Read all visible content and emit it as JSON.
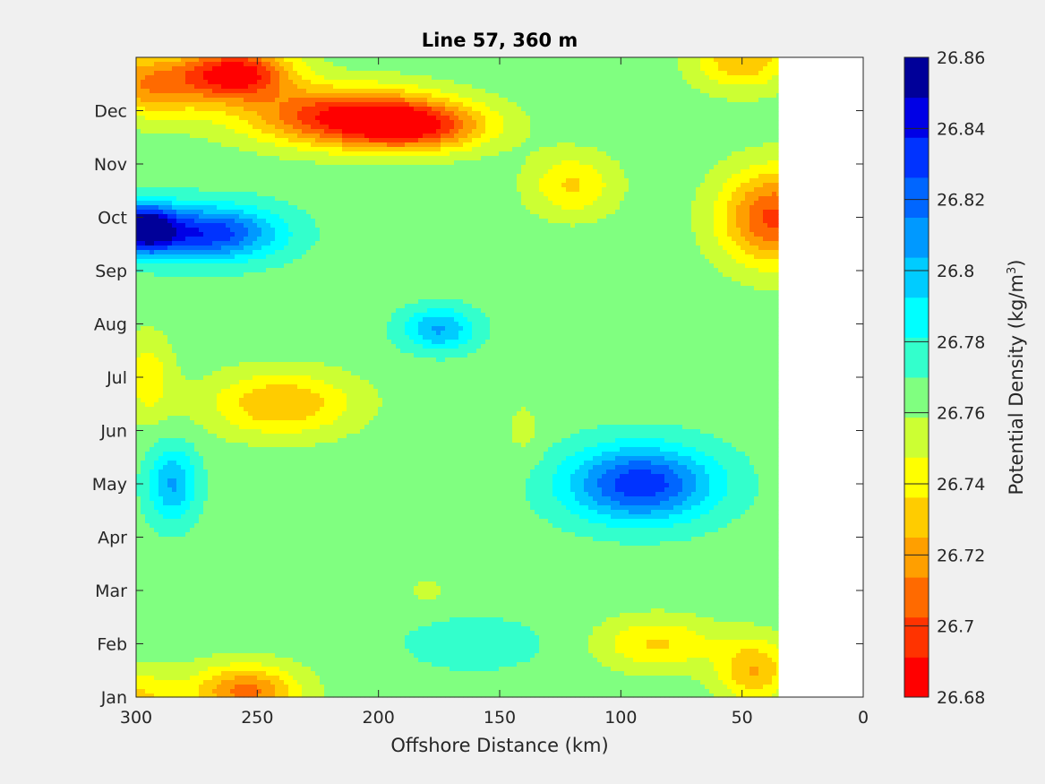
{
  "chart_data": {
    "type": "heatmap",
    "title": "Line 57, 360 m",
    "xlabel": "Offshore Distance (km)",
    "x_reversed": true,
    "xlim": [
      0,
      300
    ],
    "x_ticks": [
      "300",
      "250",
      "200",
      "150",
      "100",
      "50",
      "0"
    ],
    "x_tick_values": [
      300,
      250,
      200,
      150,
      100,
      50,
      0
    ],
    "data_x_range": [
      35,
      300
    ],
    "ylabel": "",
    "y_ticks": [
      "Jan",
      "Feb",
      "Mar",
      "Apr",
      "May",
      "Jun",
      "Jul",
      "Aug",
      "Sep",
      "Oct",
      "Nov",
      "Dec"
    ],
    "y_tick_values": [
      1,
      2,
      3,
      4,
      5,
      6,
      7,
      8,
      9,
      10,
      11,
      12
    ],
    "ylim": [
      1,
      13
    ],
    "colorbar": {
      "label_parts": [
        "Potential Density (kg/m",
        "3",
        ")"
      ],
      "range": [
        26.68,
        26.86
      ],
      "ticks": [
        "26.68",
        "26.7",
        "26.72",
        "26.74",
        "26.76",
        "26.78",
        "26.8",
        "26.82",
        "26.84",
        "26.86"
      ],
      "tick_values": [
        26.68,
        26.7,
        26.72,
        26.74,
        26.76,
        26.78,
        26.8,
        26.82,
        26.84,
        26.86
      ],
      "colors": [
        "#ff0000",
        "#ff3300",
        "#ff6a00",
        "#ff9f00",
        "#ffcc00",
        "#ffff00",
        "#ccff33",
        "#80ff80",
        "#33ffcc",
        "#00ffff",
        "#00ccff",
        "#0099ff",
        "#0066ff",
        "#0033ff",
        "#0000e6",
        "#000099"
      ]
    },
    "features": [
      {
        "x": 258,
        "y": 12.7,
        "value": 26.685,
        "spread_x": 22,
        "spread_y": 0.5
      },
      {
        "x": 215,
        "y": 11.9,
        "value": 26.695,
        "spread_x": 40,
        "spread_y": 0.55
      },
      {
        "x": 185,
        "y": 11.7,
        "value": 26.705,
        "spread_x": 30,
        "spread_y": 0.45
      },
      {
        "x": 295,
        "y": 12.5,
        "value": 26.715,
        "spread_x": 25,
        "spread_y": 0.6
      },
      {
        "x": 50,
        "y": 13.0,
        "value": 26.725,
        "spread_x": 20,
        "spread_y": 0.6
      },
      {
        "x": 120,
        "y": 10.6,
        "value": 26.735,
        "spread_x": 18,
        "spread_y": 0.6
      },
      {
        "x": 37,
        "y": 10.0,
        "value": 26.7,
        "spread_x": 22,
        "spread_y": 0.9
      },
      {
        "x": 298,
        "y": 9.8,
        "value": 26.855,
        "spread_x": 14,
        "spread_y": 0.45
      },
      {
        "x": 270,
        "y": 9.7,
        "value": 26.835,
        "spread_x": 28,
        "spread_y": 0.5
      },
      {
        "x": 175,
        "y": 7.9,
        "value": 26.805,
        "spread_x": 15,
        "spread_y": 0.4
      },
      {
        "x": 240,
        "y": 6.5,
        "value": 26.725,
        "spread_x": 30,
        "spread_y": 0.6
      },
      {
        "x": 295,
        "y": 7.0,
        "value": 26.74,
        "spread_x": 10,
        "spread_y": 0.8
      },
      {
        "x": 140,
        "y": 6.0,
        "value": 26.755,
        "spread_x": 8,
        "spread_y": 0.6
      },
      {
        "x": 92,
        "y": 5.0,
        "value": 26.835,
        "spread_x": 30,
        "spread_y": 0.7
      },
      {
        "x": 285,
        "y": 5.0,
        "value": 26.805,
        "spread_x": 10,
        "spread_y": 0.7
      },
      {
        "x": 180,
        "y": 3.0,
        "value": 26.755,
        "spread_x": 8,
        "spread_y": 0.3
      },
      {
        "x": 85,
        "y": 2.0,
        "value": 26.735,
        "spread_x": 25,
        "spread_y": 0.5
      },
      {
        "x": 45,
        "y": 1.5,
        "value": 26.725,
        "spread_x": 15,
        "spread_y": 0.6
      },
      {
        "x": 255,
        "y": 1.1,
        "value": 26.71,
        "spread_x": 22,
        "spread_y": 0.5
      },
      {
        "x": 300,
        "y": 1.0,
        "value": 26.735,
        "spread_x": 18,
        "spread_y": 0.5
      },
      {
        "x": 160,
        "y": 2.0,
        "value": 26.775,
        "spread_x": 35,
        "spread_y": 0.6
      }
    ]
  }
}
